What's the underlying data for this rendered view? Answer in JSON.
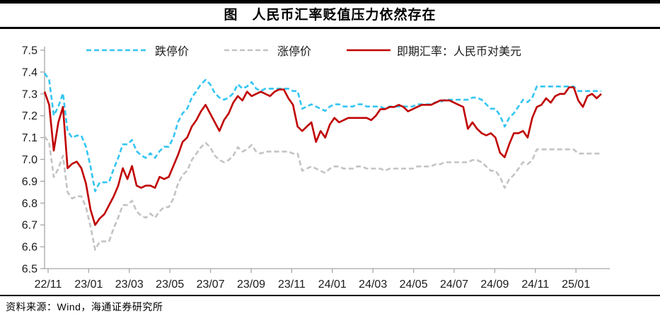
{
  "title": "图　人民币汇率贬值压力依然存在",
  "source": "资料来源：Wind，海通证券研究所",
  "colors": {
    "limit_down": "#33C5F2",
    "limit_up": "#C3C3C3",
    "spot": "#C00000",
    "axis": "#A6A6A6",
    "text": "#1a1a1a",
    "rule": "#000000"
  },
  "legend": [
    {
      "label": "跌停价",
      "color": "#33C5F2",
      "dash": true
    },
    {
      "label": "涨停价",
      "color": "#C3C3C3",
      "dash": true
    },
    {
      "label": "即期汇率：人民币对美元",
      "color": "#C00000",
      "dash": false
    }
  ],
  "chart_data": {
    "type": "line",
    "title": "人民币汇率贬值压力依然存在",
    "xlabel": "",
    "ylabel": "",
    "ylim": [
      6.5,
      7.5
    ],
    "y_ticks": [
      6.5,
      6.6,
      6.7,
      6.8,
      6.9,
      7.0,
      7.1,
      7.2,
      7.3,
      7.4,
      7.5
    ],
    "x_tick_labels": [
      "22/11",
      "23/01",
      "23/03",
      "23/05",
      "23/07",
      "23/09",
      "23/11",
      "24/01",
      "24/03",
      "24/05",
      "24/07",
      "24/09",
      "24/11",
      "25/01"
    ],
    "x_start": "2022-11",
    "x_end": "2025-02",
    "sampling": "weekly",
    "grid": false,
    "legend_position": "top",
    "series": [
      {
        "name": "涨停价",
        "role": "lower_band",
        "color": "#C3C3C3",
        "style": "dashed",
        "values": [
          7.105,
          7.076,
          6.919,
          6.958,
          7.017,
          6.85,
          6.821,
          6.831,
          6.831,
          6.782,
          6.693,
          6.586,
          6.625,
          6.625,
          6.625,
          6.684,
          6.733,
          6.791,
          6.791,
          6.811,
          6.762,
          6.742,
          6.733,
          6.752,
          6.733,
          6.762,
          6.782,
          6.782,
          6.821,
          6.889,
          6.929,
          6.948,
          6.997,
          7.027,
          7.056,
          7.076,
          7.056,
          7.017,
          6.997,
          6.987,
          6.997,
          7.017,
          7.056,
          7.036,
          7.046,
          7.066,
          7.036,
          7.027,
          7.036,
          7.036,
          7.036,
          7.036,
          7.036,
          7.036,
          7.027,
          7.027,
          6.948,
          6.958,
          6.968,
          6.958,
          6.948,
          6.938,
          6.958,
          6.968,
          6.968,
          6.958,
          6.958,
          6.958,
          6.968,
          6.968,
          6.958,
          6.958,
          6.958,
          6.958,
          6.948,
          6.958,
          6.958,
          6.958,
          6.958,
          6.958,
          6.958,
          6.968,
          6.968,
          6.968,
          6.968,
          6.978,
          6.978,
          6.987,
          6.987,
          6.987,
          6.987,
          6.987,
          6.987,
          6.997,
          6.997,
          6.987,
          6.968,
          6.948,
          6.948,
          6.919,
          6.87,
          6.909,
          6.929,
          6.958,
          6.987,
          6.978,
          6.997,
          7.046,
          7.046,
          7.046,
          7.046,
          7.046,
          7.046,
          7.046,
          7.046,
          7.046,
          7.027,
          7.027,
          7.027,
          7.027,
          7.027,
          7.027
        ]
      },
      {
        "name": "跌停价",
        "role": "upper_band",
        "color": "#33C5F2",
        "style": "dashed",
        "values": [
          7.395,
          7.364,
          7.201,
          7.242,
          7.303,
          7.13,
          7.099,
          7.109,
          7.109,
          7.058,
          6.967,
          6.854,
          6.895,
          6.895,
          6.895,
          6.956,
          7.007,
          7.069,
          7.069,
          7.089,
          7.038,
          7.018,
          7.007,
          7.028,
          7.007,
          7.038,
          7.058,
          7.058,
          7.099,
          7.171,
          7.211,
          7.232,
          7.283,
          7.313,
          7.344,
          7.364,
          7.344,
          7.303,
          7.283,
          7.273,
          7.283,
          7.303,
          7.344,
          7.324,
          7.334,
          7.354,
          7.324,
          7.313,
          7.324,
          7.324,
          7.324,
          7.324,
          7.324,
          7.324,
          7.313,
          7.313,
          7.232,
          7.242,
          7.252,
          7.242,
          7.232,
          7.222,
          7.242,
          7.252,
          7.252,
          7.242,
          7.242,
          7.242,
          7.252,
          7.252,
          7.242,
          7.242,
          7.242,
          7.242,
          7.232,
          7.242,
          7.242,
          7.242,
          7.242,
          7.242,
          7.242,
          7.252,
          7.252,
          7.252,
          7.252,
          7.262,
          7.262,
          7.273,
          7.273,
          7.273,
          7.273,
          7.273,
          7.273,
          7.283,
          7.283,
          7.273,
          7.252,
          7.232,
          7.232,
          7.201,
          7.15,
          7.191,
          7.211,
          7.242,
          7.273,
          7.262,
          7.283,
          7.334,
          7.334,
          7.334,
          7.334,
          7.334,
          7.334,
          7.334,
          7.334,
          7.334,
          7.313,
          7.313,
          7.313,
          7.313,
          7.313,
          7.313
        ]
      },
      {
        "name": "即期汇率：人民币对美元",
        "role": "spot",
        "color": "#C00000",
        "style": "solid",
        "values": [
          7.31,
          7.25,
          7.04,
          7.17,
          7.24,
          6.96,
          6.98,
          6.99,
          6.96,
          6.89,
          6.77,
          6.7,
          6.73,
          6.75,
          6.79,
          6.83,
          6.88,
          6.96,
          6.91,
          6.97,
          6.88,
          6.87,
          6.88,
          6.88,
          6.87,
          6.92,
          6.91,
          6.92,
          6.97,
          7.02,
          7.08,
          7.1,
          7.15,
          7.18,
          7.22,
          7.25,
          7.21,
          7.17,
          7.13,
          7.18,
          7.21,
          7.26,
          7.29,
          7.27,
          7.31,
          7.29,
          7.3,
          7.31,
          7.3,
          7.29,
          7.31,
          7.32,
          7.32,
          7.28,
          7.25,
          7.15,
          7.13,
          7.15,
          7.17,
          7.08,
          7.13,
          7.1,
          7.16,
          7.19,
          7.17,
          7.18,
          7.19,
          7.19,
          7.19,
          7.19,
          7.19,
          7.18,
          7.2,
          7.23,
          7.23,
          7.24,
          7.24,
          7.25,
          7.24,
          7.22,
          7.23,
          7.24,
          7.25,
          7.25,
          7.25,
          7.26,
          7.27,
          7.27,
          7.27,
          7.26,
          7.25,
          7.24,
          7.14,
          7.17,
          7.14,
          7.12,
          7.11,
          7.12,
          7.1,
          7.03,
          7.01,
          7.07,
          7.12,
          7.12,
          7.13,
          7.1,
          7.19,
          7.24,
          7.25,
          7.28,
          7.26,
          7.29,
          7.3,
          7.3,
          7.33,
          7.33,
          7.27,
          7.24,
          7.29,
          7.3,
          7.28,
          7.3
        ]
      }
    ]
  }
}
